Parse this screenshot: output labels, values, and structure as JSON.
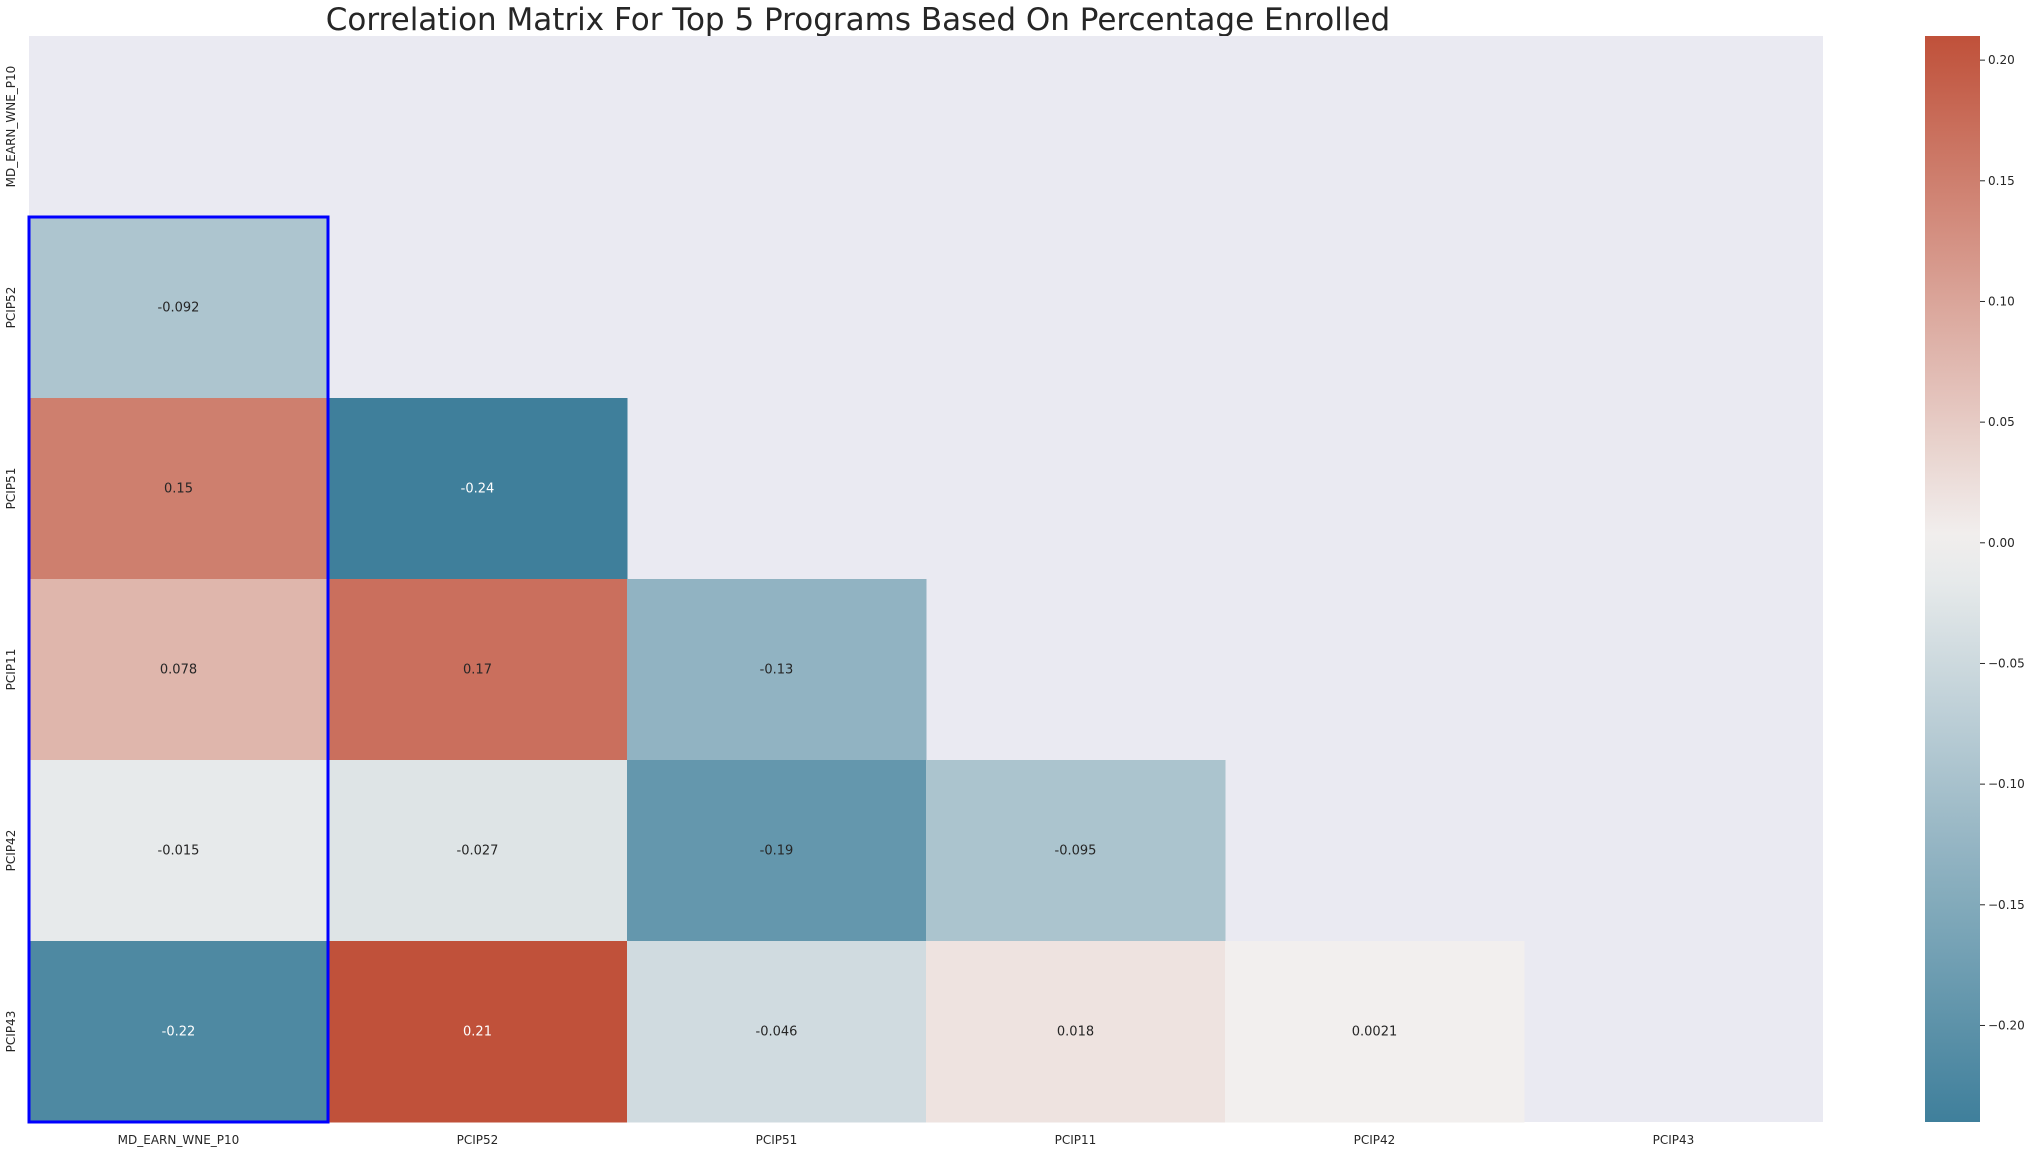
{
  "chart_data": {
    "type": "heatmap",
    "title": "Correlation Matrix For Top 5 Programs Based On Percentage Enrolled",
    "variables": [
      "MD_EARN_WNE_P10",
      "PCIP52",
      "PCIP51",
      "PCIP11",
      "PCIP42",
      "PCIP43"
    ],
    "mask": "upper-triangle-including-diagonal",
    "matrix": [
      [
        null,
        null,
        null,
        null,
        null,
        null
      ],
      [
        -0.092,
        null,
        null,
        null,
        null,
        null
      ],
      [
        0.15,
        -0.24,
        null,
        null,
        null,
        null
      ],
      [
        0.078,
        0.17,
        -0.13,
        null,
        null,
        null
      ],
      [
        -0.015,
        -0.027,
        -0.19,
        -0.095,
        null,
        null
      ],
      [
        -0.22,
        0.21,
        -0.046,
        0.018,
        0.0021,
        null
      ]
    ],
    "annotations": [
      [
        "",
        "",
        "",
        "",
        "",
        ""
      ],
      [
        "-0.092",
        "",
        "",
        "",
        "",
        ""
      ],
      [
        "0.15",
        "-0.24",
        "",
        "",
        "",
        ""
      ],
      [
        "0.078",
        "0.17",
        "-0.13",
        "",
        "",
        ""
      ],
      [
        "-0.015",
        "-0.027",
        "-0.19",
        "-0.095",
        "",
        ""
      ],
      [
        "-0.22",
        "0.21",
        "-0.046",
        "0.018",
        "0.0021",
        ""
      ]
    ],
    "colorbar": {
      "vmin": -0.24,
      "vmax": 0.21,
      "ticks": [
        0.2,
        0.15,
        0.1,
        0.05,
        0.0,
        -0.05,
        -0.1,
        -0.15,
        -0.2
      ],
      "tick_labels": [
        "0.20",
        "0.15",
        "0.10",
        "0.05",
        "0.00",
        "−0.05",
        "−0.10",
        "−0.15",
        "−0.20"
      ],
      "colormap": "diverging-blue-red",
      "low_color": "#3f7f9b",
      "mid_color": "#f2f1f0",
      "high_color": "#c0513a"
    },
    "highlight": {
      "column": "MD_EARN_WNE_P10",
      "color": "#0000ff"
    },
    "background_color": "#eaeaf2"
  }
}
